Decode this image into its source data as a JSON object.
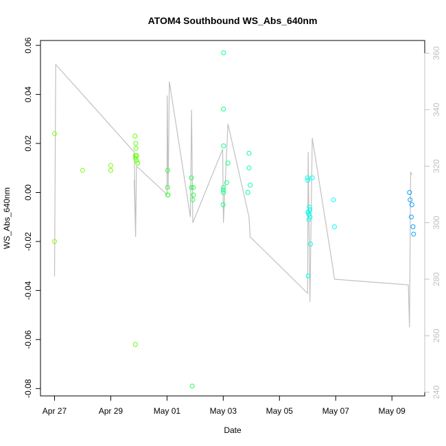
{
  "chart_data": {
    "type": "scatter",
    "title": "ATOM4 Southbound WS_Abs_640nm",
    "xlabel": "Date",
    "ylabel": "WS_Abs_640nm",
    "x_ticks": [
      {
        "date": "2024-04-27",
        "label": "Apr 27"
      },
      {
        "date": "2024-04-29",
        "label": "Apr 29"
      },
      {
        "date": "2024-05-01",
        "label": "May 01"
      },
      {
        "date": "2024-05-03",
        "label": "May 03"
      },
      {
        "date": "2024-05-05",
        "label": "May 05"
      },
      {
        "date": "2024-05-07",
        "label": "May 07"
      },
      {
        "date": "2024-05-09",
        "label": "May 09"
      }
    ],
    "xlim": [
      "2024-04-26T12:00",
      "2024-05-10T04:00"
    ],
    "ylim": [
      -0.083,
      0.062
    ],
    "y_ticks": [
      "-0.08",
      "-0.06",
      "-0.04",
      "-0.02",
      "0.00",
      "0.02",
      "0.04",
      "0.06"
    ],
    "y2_ticks": [
      "240",
      "260",
      "280",
      "300",
      "320",
      "340",
      "360"
    ],
    "y2lim": [
      238.7,
      364.5
    ],
    "grid": false,
    "points": [
      {
        "date": "2024-04-27T00:00",
        "y": 0.024,
        "color": "#80ff00"
      },
      {
        "date": "2024-04-27T00:00",
        "y": -0.02,
        "color": "#80ff00"
      },
      {
        "date": "2024-04-28T00:00",
        "y": 0.009,
        "color": "#7cff00"
      },
      {
        "date": "2024-04-29T00:00",
        "y": 0.011,
        "color": "#6cff00"
      },
      {
        "date": "2024-04-29T00:00",
        "y": 0.009,
        "color": "#6cff00"
      },
      {
        "date": "2024-04-29T20:45",
        "y": 0.023,
        "color": "#60ff00"
      },
      {
        "date": "2024-04-29T21:00",
        "y": 0.015,
        "color": "#60ff00"
      },
      {
        "date": "2024-04-29T21:10",
        "y": 0.014,
        "color": "#5cff00"
      },
      {
        "date": "2024-04-29T21:20",
        "y": 0.02,
        "color": "#5cff00"
      },
      {
        "date": "2024-04-29T21:30",
        "y": 0.018,
        "color": "#5cff00"
      },
      {
        "date": "2024-04-29T22:00",
        "y": 0.013,
        "color": "#5cff00"
      },
      {
        "date": "2024-04-29T22:10",
        "y": 0.015,
        "color": "#58ff00"
      },
      {
        "date": "2024-04-29T23:00",
        "y": 0.012,
        "color": "#58ff00"
      },
      {
        "date": "2024-04-29T21:00",
        "y": -0.062,
        "color": "#5cff00"
      },
      {
        "date": "2024-05-01T00:30",
        "y": 0.009,
        "color": "#30ff30"
      },
      {
        "date": "2024-05-01T00:30",
        "y": 0.002,
        "color": "#30ff30"
      },
      {
        "date": "2024-05-01T00:40",
        "y": -0.001,
        "color": "#30ff30"
      },
      {
        "date": "2024-05-01T00:50",
        "y": -0.001,
        "color": "#30ff30"
      },
      {
        "date": "2024-05-01T20:45",
        "y": 0.006,
        "color": "#20ff50"
      },
      {
        "date": "2024-05-01T20:50",
        "y": 0.002,
        "color": "#20ff50"
      },
      {
        "date": "2024-05-01T22:00",
        "y": -0.003,
        "color": "#20ff50"
      },
      {
        "date": "2024-05-01T22:30",
        "y": 0.002,
        "color": "#20ff50"
      },
      {
        "date": "2024-05-01T22:30",
        "y": -0.001,
        "color": "#20ff50"
      },
      {
        "date": "2024-05-01T21:30",
        "y": -0.079,
        "color": "#20ff50"
      },
      {
        "date": "2024-05-03T00:00",
        "y": 0.001,
        "color": "#10ff80"
      },
      {
        "date": "2024-05-03T00:05",
        "y": 0.002,
        "color": "#10ff80"
      },
      {
        "date": "2024-05-03T00:05",
        "y": 0.0,
        "color": "#10ff80"
      },
      {
        "date": "2024-05-02T23:50",
        "y": -0.005,
        "color": "#10ff80"
      },
      {
        "date": "2024-05-03T00:15",
        "y": 0.057,
        "color": "#10ff80"
      },
      {
        "date": "2024-05-03T00:10",
        "y": 0.034,
        "color": "#10ff80"
      },
      {
        "date": "2024-05-03T00:20",
        "y": 0.019,
        "color": "#10ff80"
      },
      {
        "date": "2024-05-03T04:00",
        "y": 0.012,
        "color": "#10ff80"
      },
      {
        "date": "2024-05-03T03:00",
        "y": 0.004,
        "color": "#10ff80"
      },
      {
        "date": "2024-05-03T22:00",
        "y": 0.016,
        "color": "#00ffa0"
      },
      {
        "date": "2024-05-03T22:00",
        "y": 0.01,
        "color": "#00ffa0"
      },
      {
        "date": "2024-05-03T23:00",
        "y": 0.003,
        "color": "#00ffa0"
      },
      {
        "date": "2024-05-03T21:00",
        "y": 0.0,
        "color": "#00ffa0"
      },
      {
        "date": "2024-05-06T00:00",
        "y": 0.006,
        "color": "#00fff0"
      },
      {
        "date": "2024-05-06T00:10",
        "y": 0.005,
        "color": "#00fff0"
      },
      {
        "date": "2024-05-06T04:00",
        "y": 0.006,
        "color": "#00fff0"
      },
      {
        "date": "2024-05-06T00:20",
        "y": -0.008,
        "color": "#00fff0"
      },
      {
        "date": "2024-05-06T00:40",
        "y": -0.008,
        "color": "#00fff0"
      },
      {
        "date": "2024-05-06T01:00",
        "y": -0.009,
        "color": "#00fff0"
      },
      {
        "date": "2024-05-06T01:30",
        "y": -0.006,
        "color": "#00fff0"
      },
      {
        "date": "2024-05-06T02:00",
        "y": -0.007,
        "color": "#00fff0"
      },
      {
        "date": "2024-05-06T02:10",
        "y": -0.01,
        "color": "#00fff0"
      },
      {
        "date": "2024-05-06T01:00",
        "y": -0.011,
        "color": "#00fff0"
      },
      {
        "date": "2024-05-06T02:30",
        "y": -0.021,
        "color": "#00fff0"
      },
      {
        "date": "2024-05-06T00:30",
        "y": -0.034,
        "color": "#00fff0"
      },
      {
        "date": "2024-05-06T22:00",
        "y": -0.003,
        "color": "#00ffff"
      },
      {
        "date": "2024-05-06T23:00",
        "y": -0.014,
        "color": "#00ffff"
      },
      {
        "date": "2024-05-09T15:00",
        "y": 0.0,
        "color": "#00a0ff"
      },
      {
        "date": "2024-05-09T15:30",
        "y": -0.003,
        "color": "#00a0ff"
      },
      {
        "date": "2024-05-09T17:00",
        "y": -0.005,
        "color": "#00a0ff"
      },
      {
        "date": "2024-05-09T16:30",
        "y": -0.01,
        "color": "#00a0ff"
      },
      {
        "date": "2024-05-09T18:00",
        "y": -0.014,
        "color": "#00a0ff"
      },
      {
        "date": "2024-05-09T18:30",
        "y": -0.017,
        "color": "#00a0ff"
      }
    ],
    "secondary_line": {
      "color": "#c0c0c0",
      "points": [
        {
          "date": "2024-04-27T00:00",
          "y2": 281
        },
        {
          "date": "2024-04-27T01:00",
          "y2": 356
        },
        {
          "date": "2024-04-29T20:00",
          "y2": 325
        },
        {
          "date": "2024-04-29T21:00",
          "y2": 300
        },
        {
          "date": "2024-04-29T20:00",
          "y2": 315
        },
        {
          "date": "2024-04-29T21:10",
          "y2": 295
        },
        {
          "date": "2024-04-29T22:00",
          "y2": 320
        },
        {
          "date": "2024-05-01T00:00",
          "y2": 310
        },
        {
          "date": "2024-05-01T00:10",
          "y2": 345
        },
        {
          "date": "2024-05-01T01:00",
          "y2": 312
        },
        {
          "date": "2024-05-01T02:00",
          "y2": 350
        },
        {
          "date": "2024-05-01T20:00",
          "y2": 302
        },
        {
          "date": "2024-05-01T21:00",
          "y2": 340
        },
        {
          "date": "2024-05-01T22:00",
          "y2": 300
        },
        {
          "date": "2024-05-02T23:30",
          "y2": 326
        },
        {
          "date": "2024-05-03T00:10",
          "y2": 300
        },
        {
          "date": "2024-05-03T04:00",
          "y2": 335
        },
        {
          "date": "2024-05-03T22:00",
          "y2": 302
        },
        {
          "date": "2024-05-03T23:00",
          "y2": 295
        },
        {
          "date": "2024-05-06T00:00",
          "y2": 275
        },
        {
          "date": "2024-05-06T00:30",
          "y2": 325
        },
        {
          "date": "2024-05-06T02:00",
          "y2": 272
        },
        {
          "date": "2024-05-06T04:00",
          "y2": 330
        },
        {
          "date": "2024-05-06T22:00",
          "y2": 283
        },
        {
          "date": "2024-05-06T23:00",
          "y2": 280
        },
        {
          "date": "2024-05-09T14:00",
          "y2": 278
        },
        {
          "date": "2024-05-09T15:00",
          "y2": 263
        },
        {
          "date": "2024-05-09T16:00",
          "y2": 318
        },
        {
          "date": "2024-05-09T17:00",
          "y2": 317
        }
      ]
    }
  }
}
